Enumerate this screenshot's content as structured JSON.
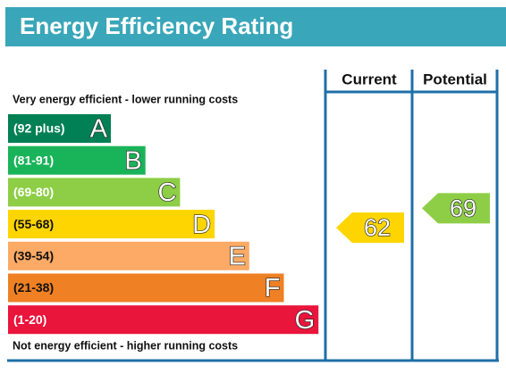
{
  "title": "Energy Efficiency Rating",
  "top_note": "Very energy efficient - lower running costs",
  "bottom_note": "Not energy efficient - higher running costs",
  "columns": [
    "Current",
    "Potential"
  ],
  "bands": [
    {
      "range": "(92 plus)",
      "letter": "A",
      "color": "#008054"
    },
    {
      "range": "(81-91)",
      "letter": "B",
      "color": "#19b459"
    },
    {
      "range": "(69-80)",
      "letter": "C",
      "color": "#8dce46"
    },
    {
      "range": "(55-68)",
      "letter": "D",
      "color": "#ffd500"
    },
    {
      "range": "(39-54)",
      "letter": "E",
      "color": "#fcaa65"
    },
    {
      "range": "(21-38)",
      "letter": "F",
      "color": "#ef8023"
    },
    {
      "range": "(1-20)",
      "letter": "G",
      "color": "#e9153b"
    }
  ],
  "ratings": [
    {
      "value": 62,
      "color": "#ffd500"
    },
    {
      "value": 69,
      "color": "#8dce46"
    }
  ]
}
